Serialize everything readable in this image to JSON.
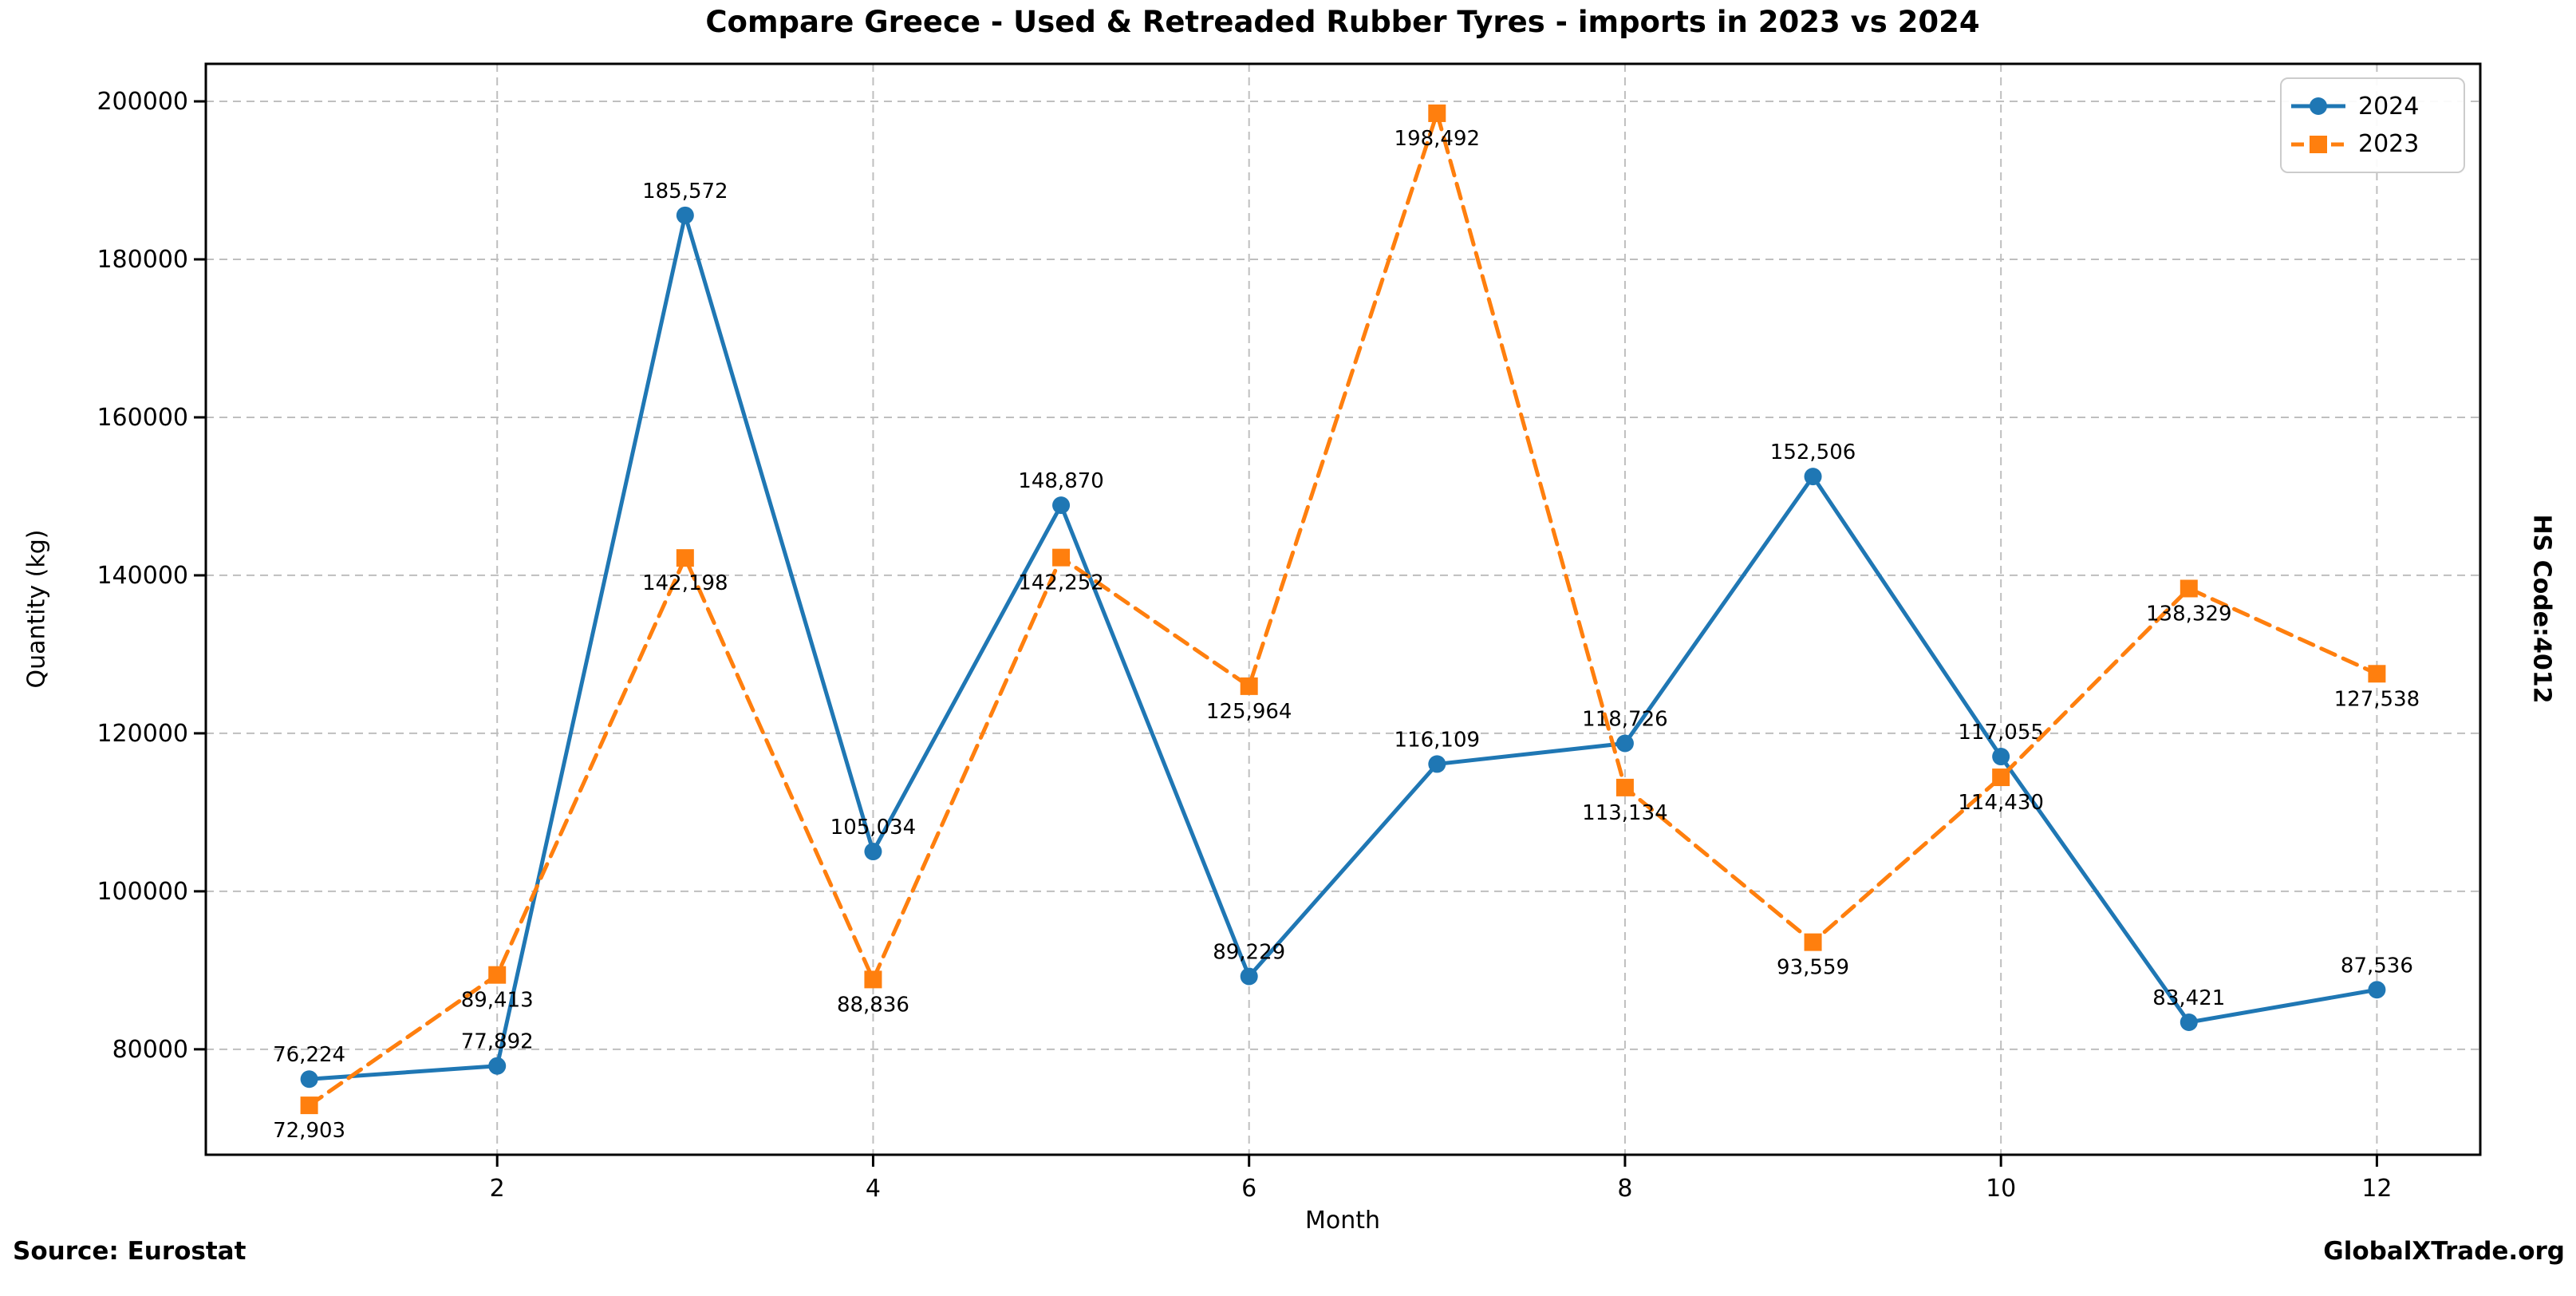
{
  "title": "Compare Greece - Used & Retreaded Rubber Tyres - imports in 2023 vs 2024",
  "side_label": "HS Code:4012",
  "footer": {
    "source": "Source: Eurostat",
    "brand": "GlobalXTrade.org"
  },
  "chart_data": {
    "type": "line",
    "x": [
      1,
      2,
      3,
      4,
      5,
      6,
      7,
      8,
      9,
      10,
      11,
      12
    ],
    "series": [
      {
        "name": "2024",
        "color": "#1f77b4",
        "marker": "circle",
        "line_style": "solid",
        "label_side": "above",
        "values": [
          76224,
          77892,
          185572,
          105034,
          148870,
          89229,
          116109,
          118726,
          152506,
          117055,
          83421,
          87536
        ]
      },
      {
        "name": "2023",
        "color": "#ff7f0e",
        "marker": "square",
        "line_style": "dashed",
        "label_side": "below",
        "values": [
          72903,
          89413,
          142198,
          88836,
          142252,
          125964,
          198492,
          113134,
          93559,
          114430,
          138329,
          127538
        ]
      }
    ],
    "title": "Compare Greece - Used & Retreaded Rubber Tyres - imports in 2023 vs 2024",
    "xlabel": "Month",
    "ylabel": "Quantity (kg)",
    "xticks": [
      2,
      4,
      6,
      8,
      10,
      12
    ],
    "yticks": [
      80000,
      100000,
      120000,
      140000,
      160000,
      180000,
      200000
    ],
    "xlim": [
      0.45,
      12.55
    ],
    "ylim": [
      66650,
      204750
    ],
    "grid": true,
    "legend_position": "upper right",
    "colors": {
      "grid": "#bfbfbf",
      "spine": "#000000",
      "text": "#000000"
    }
  }
}
